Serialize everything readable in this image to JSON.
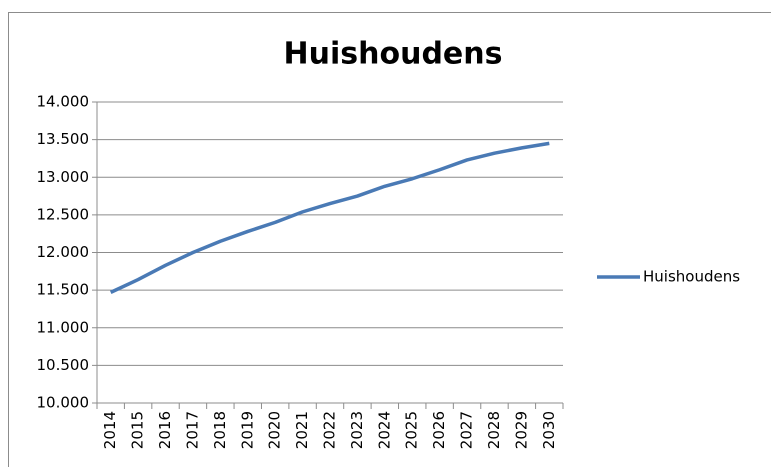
{
  "chart_data": {
    "type": "line",
    "title": "Huishoudens",
    "categories": [
      "2014",
      "2015",
      "2016",
      "2017",
      "2018",
      "2019",
      "2020",
      "2021",
      "2022",
      "2023",
      "2024",
      "2025",
      "2026",
      "2027",
      "2028",
      "2029",
      "2030"
    ],
    "series": [
      {
        "name": "Huishoudens",
        "color": "#4a7ab5",
        "values": [
          11470,
          11640,
          11830,
          12000,
          12150,
          12280,
          12400,
          12540,
          12650,
          12750,
          12880,
          12980,
          13100,
          13230,
          13320,
          13390,
          13450
        ]
      }
    ],
    "ylim": [
      10000,
      14000
    ],
    "yticks": [
      {
        "value": 10000,
        "label": "10.000"
      },
      {
        "value": 10500,
        "label": "10.500"
      },
      {
        "value": 11000,
        "label": "11.000"
      },
      {
        "value": 11500,
        "label": "11.500"
      },
      {
        "value": 12000,
        "label": "12.000"
      },
      {
        "value": 12500,
        "label": "12.500"
      },
      {
        "value": 13000,
        "label": "13.000"
      },
      {
        "value": 13500,
        "label": "13.500"
      },
      {
        "value": 14000,
        "label": "14.000"
      }
    ],
    "grid": true,
    "legend": "right"
  }
}
